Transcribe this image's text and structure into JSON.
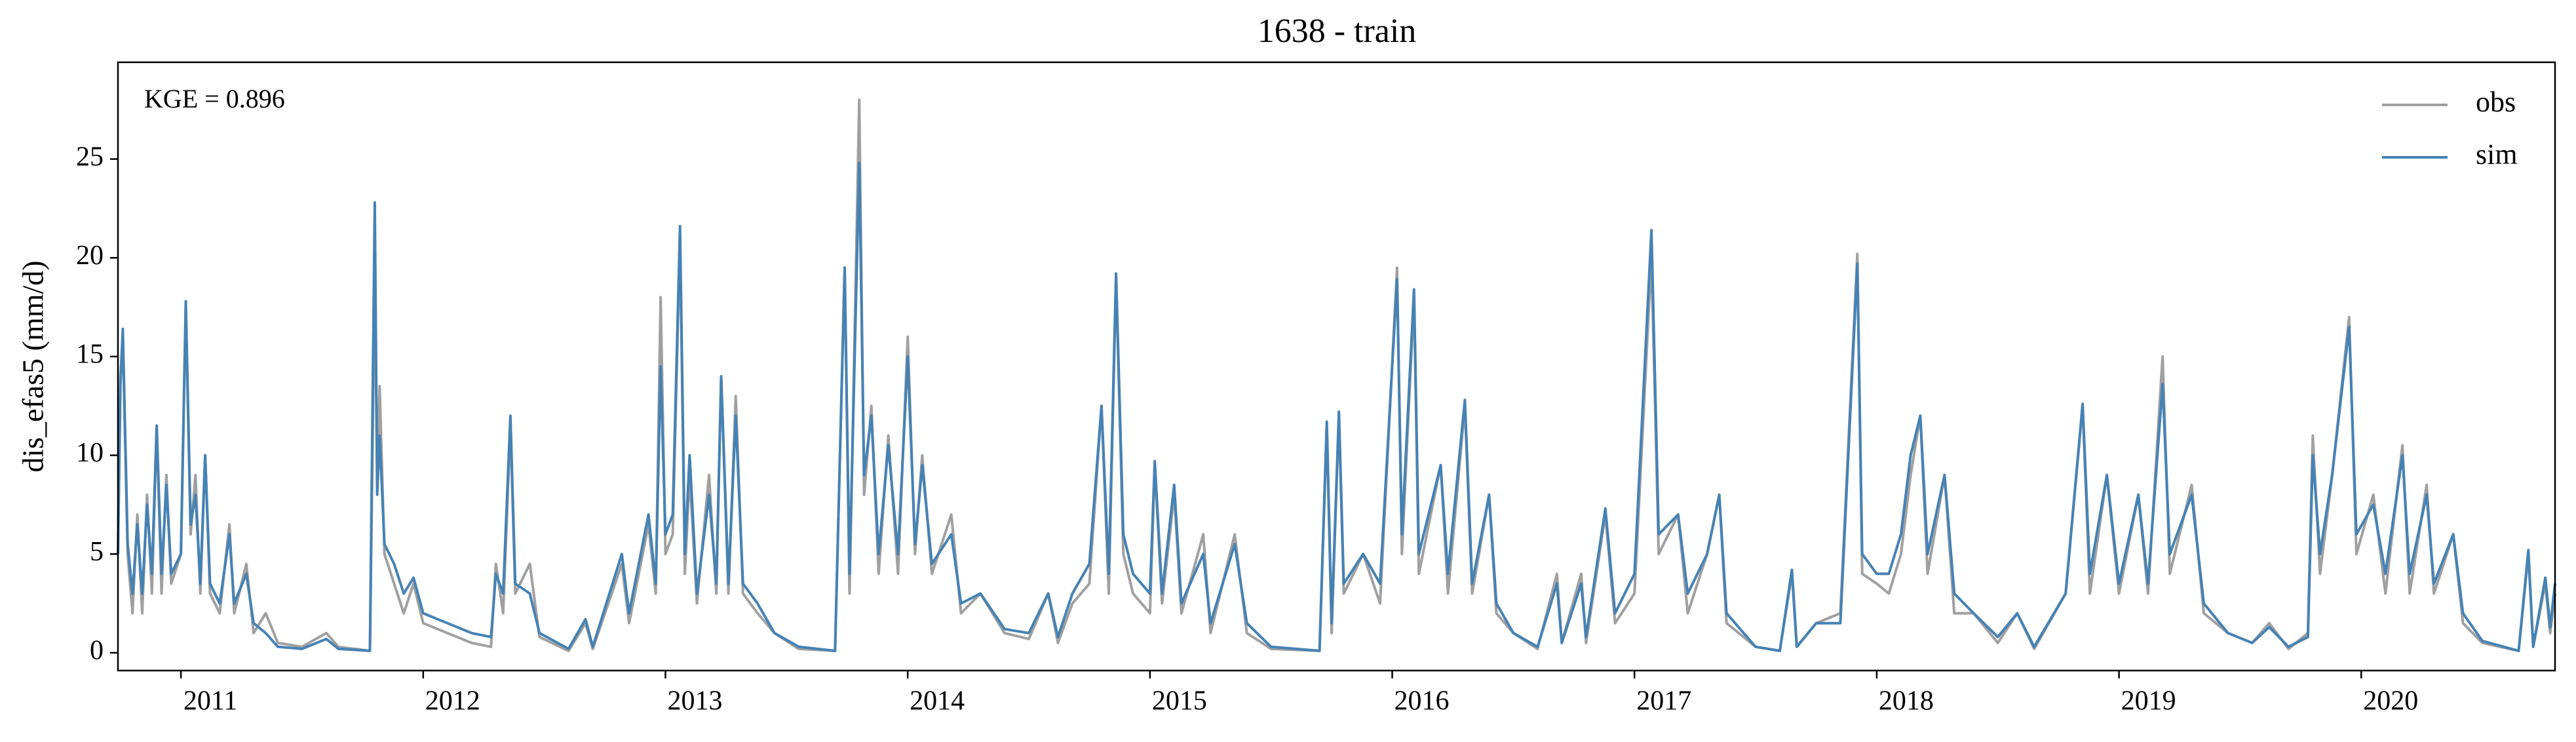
{
  "chart_data": {
    "type": "line",
    "title": "1638 - train",
    "ylabel": "dis_efas5 (mm/d)",
    "annotation": "KGE = 0.896",
    "legend": "upper right",
    "grid": false,
    "xlim": [
      2010.74,
      2020.8
    ],
    "xticks": [
      2011,
      2012,
      2013,
      2014,
      2015,
      2016,
      2017,
      2018,
      2019,
      2020
    ],
    "ylim": [
      -0.9,
      29.9
    ],
    "yticks": [
      0,
      5,
      10,
      15,
      20,
      25
    ],
    "x": [
      2010.74,
      2010.75,
      2010.76,
      2010.78,
      2010.8,
      2010.82,
      2010.84,
      2010.86,
      2010.88,
      2010.9,
      2010.92,
      2010.94,
      2010.96,
      2011.0,
      2011.02,
      2011.04,
      2011.06,
      2011.08,
      2011.1,
      2011.12,
      2011.16,
      2011.2,
      2011.22,
      2011.27,
      2011.3,
      2011.35,
      2011.4,
      2011.5,
      2011.6,
      2011.65,
      2011.78,
      2011.8,
      2011.81,
      2011.82,
      2011.84,
      2011.88,
      2011.92,
      2011.96,
      2012.0,
      2012.1,
      2012.2,
      2012.28,
      2012.3,
      2012.33,
      2012.36,
      2012.38,
      2012.44,
      2012.48,
      2012.6,
      2012.67,
      2012.7,
      2012.82,
      2012.85,
      2012.93,
      2012.96,
      2012.98,
      2013.0,
      2013.03,
      2013.06,
      2013.08,
      2013.1,
      2013.13,
      2013.18,
      2013.21,
      2013.23,
      2013.26,
      2013.29,
      2013.32,
      2013.38,
      2013.45,
      2013.55,
      2013.7,
      2013.74,
      2013.76,
      2013.8,
      2013.82,
      2013.85,
      2013.88,
      2013.92,
      2013.96,
      2014.0,
      2014.03,
      2014.06,
      2014.1,
      2014.18,
      2014.22,
      2014.3,
      2014.4,
      2014.5,
      2014.58,
      2014.62,
      2014.68,
      2014.75,
      2014.8,
      2014.83,
      2014.86,
      2014.89,
      2014.93,
      2015.0,
      2015.02,
      2015.05,
      2015.1,
      2015.13,
      2015.22,
      2015.25,
      2015.35,
      2015.4,
      2015.5,
      2015.7,
      2015.73,
      2015.75,
      2015.78,
      2015.8,
      2015.88,
      2015.95,
      2016.02,
      2016.04,
      2016.09,
      2016.11,
      2016.2,
      2016.23,
      2016.3,
      2016.33,
      2016.4,
      2016.43,
      2016.5,
      2016.6,
      2016.68,
      2016.7,
      2016.78,
      2016.8,
      2016.88,
      2016.92,
      2017.0,
      2017.07,
      2017.1,
      2017.18,
      2017.22,
      2017.3,
      2017.35,
      2017.38,
      2017.5,
      2017.6,
      2017.65,
      2017.67,
      2017.75,
      2017.85,
      2017.92,
      2017.94,
      2018.0,
      2018.05,
      2018.1,
      2018.14,
      2018.18,
      2018.21,
      2018.28,
      2018.32,
      2018.4,
      2018.5,
      2018.58,
      2018.65,
      2018.78,
      2018.85,
      2018.88,
      2018.95,
      2019.0,
      2019.08,
      2019.12,
      2019.18,
      2019.21,
      2019.3,
      2019.35,
      2019.45,
      2019.55,
      2019.62,
      2019.7,
      2019.78,
      2019.8,
      2019.83,
      2019.88,
      2019.95,
      2019.98,
      2020.05,
      2020.1,
      2020.17,
      2020.2,
      2020.27,
      2020.3,
      2020.38,
      2020.42,
      2020.5,
      2020.65,
      2020.69,
      2020.71,
      2020.76,
      2020.78,
      2020.8
    ],
    "series": [
      {
        "name": "obs",
        "color": "#a0a0a0",
        "values": [
          5,
          14,
          16,
          5,
          2,
          7,
          2,
          8,
          3,
          11.5,
          3,
          9,
          3.5,
          5,
          17.5,
          6,
          9,
          3,
          10,
          3,
          2,
          6.5,
          2,
          4.5,
          1,
          2,
          0.5,
          0.3,
          1,
          0.3,
          0.1,
          19,
          9,
          13.5,
          5,
          3.5,
          2,
          3.5,
          1.5,
          1,
          0.5,
          0.3,
          4.5,
          2,
          11.5,
          3,
          4.5,
          0.8,
          0.1,
          1.5,
          0.2,
          4.5,
          1.5,
          6.5,
          3,
          18,
          5,
          6,
          21,
          4,
          9,
          2.5,
          9,
          3,
          14,
          3,
          13,
          3,
          2,
          1,
          0.2,
          0.1,
          19.5,
          3,
          28,
          8,
          12.5,
          4,
          11,
          4,
          16,
          5,
          10,
          4,
          7,
          2,
          3,
          1,
          0.7,
          3,
          0.5,
          2.5,
          3.5,
          12.5,
          3,
          19,
          5,
          3,
          2,
          9.5,
          2.5,
          8,
          2,
          6,
          1,
          6,
          1,
          0.2,
          0.1,
          11.5,
          1,
          12,
          3,
          5,
          2.5,
          19.5,
          5,
          18,
          4,
          9.5,
          3,
          12.5,
          3,
          8,
          2,
          1,
          0.2,
          4,
          0.5,
          4,
          0.5,
          7,
          1.5,
          3,
          20,
          5,
          7,
          2,
          5,
          8,
          1.5,
          0.3,
          0.1,
          4,
          0.3,
          1.5,
          2,
          20.2,
          4,
          3.5,
          3,
          5,
          9,
          12,
          4,
          9,
          2,
          2,
          0.5,
          2,
          0.2,
          3,
          12.5,
          3,
          9,
          3,
          8,
          3,
          15,
          4,
          8.5,
          2,
          1,
          0.5,
          1.5,
          0.2,
          1,
          11,
          4,
          9,
          17,
          5,
          8,
          3,
          10.5,
          3,
          8.5,
          3,
          6,
          1.5,
          0.5,
          0.1,
          5,
          0.3,
          3.5,
          1,
          3
        ]
      },
      {
        "name": "sim",
        "color": "#4682b4",
        "values": [
          5,
          13.5,
          16.4,
          5.5,
          3,
          6.5,
          3,
          7.5,
          4,
          11.5,
          4,
          8.5,
          4,
          5,
          17.8,
          6.5,
          8,
          3.5,
          10,
          3.5,
          2.5,
          6,
          2.5,
          4,
          1.5,
          1,
          0.3,
          0.2,
          0.7,
          0.2,
          0.1,
          22.8,
          8,
          11,
          5.5,
          4.5,
          3,
          3.8,
          2,
          1.5,
          1,
          0.8,
          4,
          3,
          12,
          3.5,
          3,
          1,
          0.2,
          1.7,
          0.3,
          5,
          2,
          7,
          3.5,
          14.5,
          6,
          7,
          21.6,
          5,
          10,
          3,
          8,
          3.5,
          14,
          3.5,
          12,
          3.5,
          2.5,
          1,
          0.3,
          0.1,
          19.5,
          4,
          24.8,
          9,
          12,
          5,
          10.5,
          5,
          15,
          5.5,
          9.5,
          4.5,
          6,
          2.5,
          3,
          1.2,
          1,
          3,
          0.8,
          3,
          4.5,
          12.5,
          4,
          19.2,
          6,
          4,
          3,
          9.7,
          3,
          8.5,
          2.5,
          5,
          1.5,
          5.5,
          1.5,
          0.3,
          0.1,
          11.7,
          1.5,
          12.2,
          3.5,
          5,
          3.5,
          18.9,
          6,
          18.4,
          5,
          9.5,
          4,
          12.8,
          3.5,
          8,
          2.5,
          1,
          0.3,
          3.5,
          0.5,
          3.5,
          0.8,
          7.3,
          2,
          4,
          21.4,
          6,
          7,
          3,
          5,
          8,
          2,
          0.3,
          0.1,
          4.2,
          0.3,
          1.5,
          1.5,
          19.7,
          5,
          4,
          4,
          6,
          10,
          12,
          5,
          9,
          3,
          2,
          0.8,
          2,
          0.3,
          3,
          12.6,
          4,
          9,
          3.5,
          8,
          3.5,
          13.6,
          5,
          8,
          2.5,
          1,
          0.5,
          1.3,
          0.3,
          0.8,
          10,
          5,
          9,
          16.5,
          6,
          7.5,
          4,
          10,
          4,
          8,
          3.5,
          6,
          2,
          0.6,
          0.1,
          5.2,
          0.3,
          3.8,
          1.3,
          3.5
        ]
      }
    ]
  }
}
